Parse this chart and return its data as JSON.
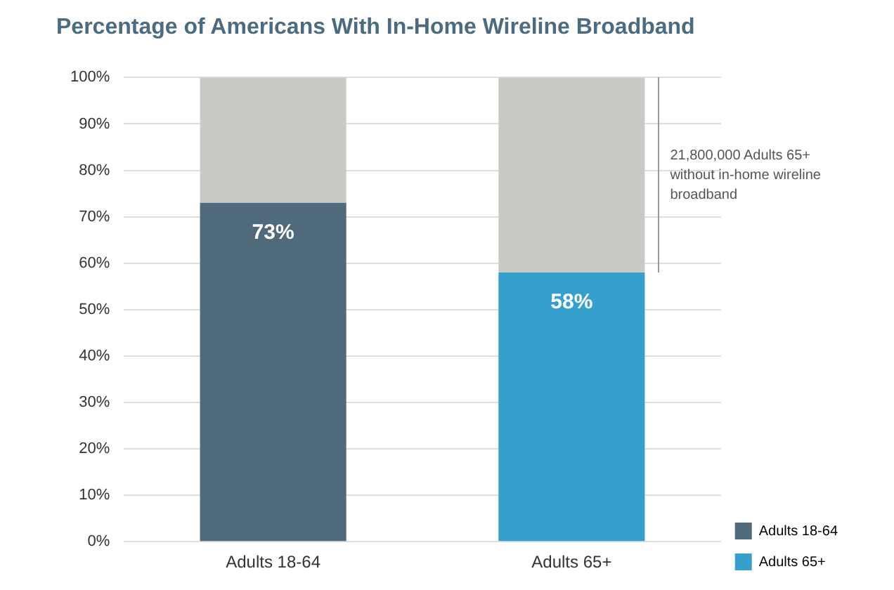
{
  "chart_data": {
    "type": "bar",
    "title": "Percentage of Americans With In-Home Wireline Broadband",
    "categories": [
      "Adults 18-64",
      "Adults 65+"
    ],
    "stacked": true,
    "series": [
      {
        "name": "Adults 18-64",
        "color": "#4e6a7b",
        "values": [
          73,
          null
        ],
        "value_labels": [
          "73%",
          null
        ]
      },
      {
        "name": "Adults 65+",
        "color": "#35a0cb",
        "values": [
          null,
          58
        ],
        "value_labels": [
          null,
          "58%"
        ]
      },
      {
        "color": "#c9c9c5",
        "values": [
          27,
          42
        ]
      }
    ],
    "ylim": [
      0,
      100
    ],
    "yticks": [
      {
        "value": 0,
        "label": "0%"
      },
      {
        "value": 10,
        "label": "10%"
      },
      {
        "value": 20,
        "label": "20%"
      },
      {
        "value": 30,
        "label": "30%"
      },
      {
        "value": 40,
        "label": "40%"
      },
      {
        "value": 50,
        "label": "50%"
      },
      {
        "value": 60,
        "label": "60%"
      },
      {
        "value": 70,
        "label": "70%"
      },
      {
        "value": 80,
        "label": "80%"
      },
      {
        "value": 90,
        "label": "90%"
      },
      {
        "value": 100,
        "label": "100%"
      }
    ],
    "grid": "y",
    "legend": "bottom right",
    "annotations": [
      "21,800,000 Adults 65+ without in-home wireline broadband"
    ]
  }
}
